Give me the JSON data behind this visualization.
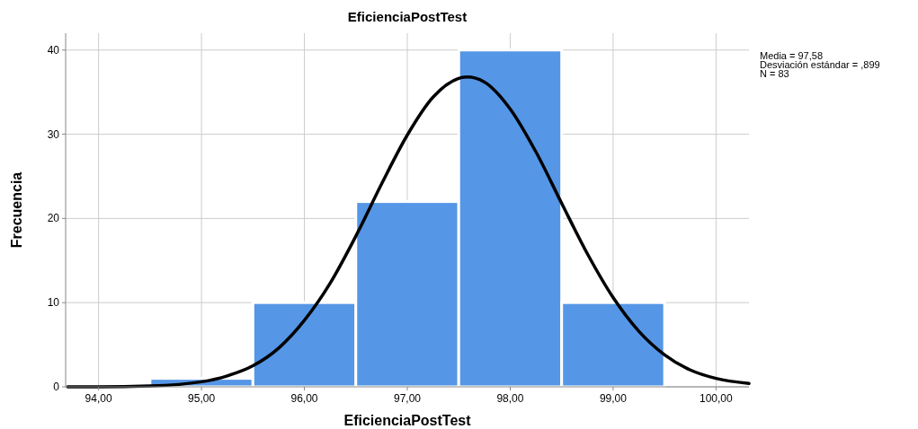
{
  "chart_data": {
    "type": "histogram",
    "title": "EficienciaPostTest",
    "xlabel": "EficienciaPostTest",
    "ylabel": "Frecuencia",
    "annotations": [
      "Media = 97,58",
      "Desviación estándar = ,899",
      "N = 83"
    ],
    "xlim": [
      93.68,
      100.32
    ],
    "ylim": [
      0,
      42
    ],
    "xticks": [
      {
        "value": 94,
        "label": "94,00"
      },
      {
        "value": 95,
        "label": "95,00"
      },
      {
        "value": 96,
        "label": "96,00"
      },
      {
        "value": 97,
        "label": "97,00"
      },
      {
        "value": 98,
        "label": "98,00"
      },
      {
        "value": 99,
        "label": "99,00"
      },
      {
        "value": 100,
        "label": "100,00"
      }
    ],
    "yticks": [
      0,
      10,
      20,
      30,
      40
    ],
    "grid": true,
    "series": [
      {
        "color": "#5596e6",
        "bins": [
          94.5,
          95.5,
          96.5,
          97.5,
          98.5,
          99.5
        ],
        "values": [
          1,
          10,
          22,
          40,
          10
        ]
      },
      {
        "type": "line",
        "color": "#000000",
        "x": [
          93.7,
          94,
          94.5,
          95,
          95.25,
          95.5,
          95.75,
          96,
          96.25,
          96.5,
          96.75,
          97,
          97.25,
          97.58,
          97.75,
          98,
          98.25,
          98.5,
          98.75,
          99,
          99.25,
          99.5,
          99.75,
          100,
          100.32
        ],
        "values": [
          0,
          0,
          0.1,
          0.6,
          1.3,
          2.5,
          4.6,
          7.9,
          12.3,
          17.9,
          24.1,
          29.9,
          34.4,
          36.8,
          36.2,
          33,
          27.9,
          21.8,
          15.8,
          10.6,
          6.6,
          3.8,
          2,
          1,
          0.4
        ]
      }
    ]
  }
}
